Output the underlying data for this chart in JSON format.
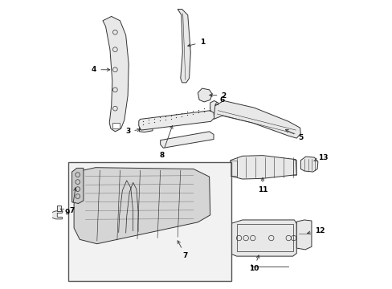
{
  "background_color": "#ffffff",
  "line_color": "#333333",
  "label_color": "#000000",
  "fill_light": "#e8e8e8",
  "fill_inset": "#f0f0f0",
  "fig_width": 4.89,
  "fig_height": 3.6,
  "dpi": 100
}
